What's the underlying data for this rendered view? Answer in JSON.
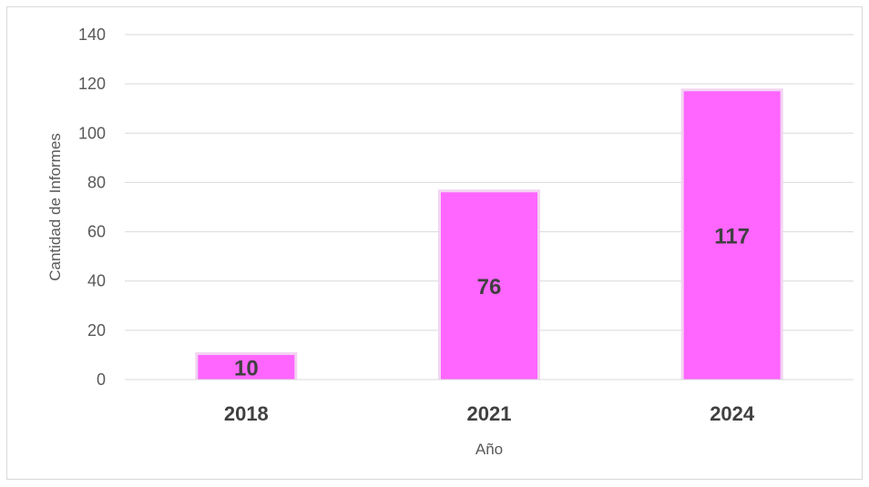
{
  "chart_data": {
    "type": "bar",
    "title": "",
    "xlabel": "Año",
    "ylabel": "Cantidad de Informes",
    "categories": [
      "2018",
      "2021",
      "2024"
    ],
    "values": [
      10,
      76,
      117
    ],
    "data_labels": [
      "10",
      "76",
      "117"
    ],
    "ylim": [
      0,
      140
    ],
    "yticks": [
      0,
      20,
      40,
      60,
      80,
      100,
      120,
      140
    ],
    "ytick_labels": [
      "0",
      "20",
      "40",
      "60",
      "80",
      "100",
      "120",
      "140"
    ],
    "grid": true,
    "legend": "none",
    "bar_color": "#FF66FF",
    "bar_glow_color": "#F2D4F2"
  }
}
